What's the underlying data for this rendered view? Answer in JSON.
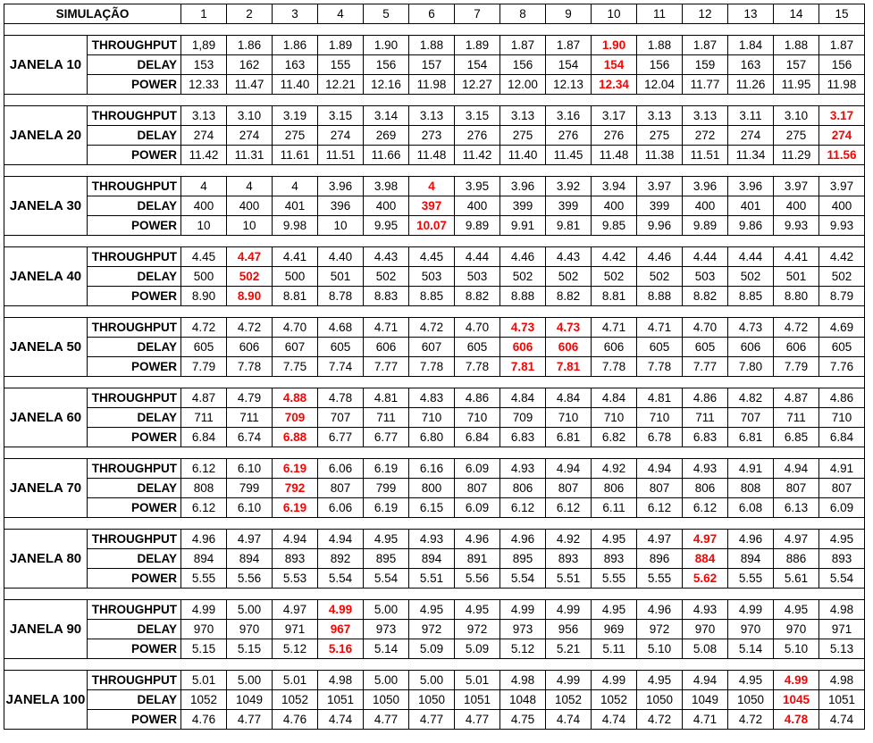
{
  "header": {
    "label": "SIMULAÇÃO",
    "columns": [
      "1",
      "2",
      "3",
      "4",
      "5",
      "6",
      "7",
      "8",
      "9",
      "10",
      "11",
      "12",
      "13",
      "14",
      "15"
    ]
  },
  "metrics": [
    "THROUGHPUT",
    "DELAY",
    "POWER"
  ],
  "colors": {
    "highlight": "#ff0000",
    "border": "#000000"
  },
  "groups": [
    {
      "label": "JANELA 10",
      "rows": [
        {
          "values": [
            "1,89",
            "1.86",
            "1.86",
            "1.89",
            "1.90",
            "1.88",
            "1.89",
            "1.87",
            "1.87",
            "1.90",
            "1.88",
            "1.87",
            "1.84",
            "1.88",
            "1.87"
          ],
          "highlight": [
            9
          ]
        },
        {
          "values": [
            "153",
            "162",
            "163",
            "155",
            "156",
            "157",
            "154",
            "156",
            "154",
            "154",
            "156",
            "159",
            "163",
            "157",
            "156"
          ],
          "highlight": [
            9
          ]
        },
        {
          "values": [
            "12.33",
            "11.47",
            "11.40",
            "12.21",
            "12.16",
            "11.98",
            "12.27",
            "12.00",
            "12.13",
            "12.34",
            "12.04",
            "11.77",
            "11.26",
            "11.95",
            "11.98"
          ],
          "highlight": [
            9
          ]
        }
      ]
    },
    {
      "label": "JANELA 20",
      "rows": [
        {
          "values": [
            "3.13",
            "3.10",
            "3.19",
            "3.15",
            "3.14",
            "3.13",
            "3.15",
            "3.13",
            "3.16",
            "3.17",
            "3.13",
            "3.13",
            "3.11",
            "3.10",
            "3.17"
          ],
          "highlight": [
            14
          ]
        },
        {
          "values": [
            "274",
            "274",
            "275",
            "274",
            "269",
            "273",
            "276",
            "275",
            "276",
            "276",
            "275",
            "272",
            "274",
            "275",
            "274"
          ],
          "highlight": [
            14
          ]
        },
        {
          "values": [
            "11.42",
            "11.31",
            "11.61",
            "11.51",
            "11.66",
            "11.48",
            "11.42",
            "11.40",
            "11.45",
            "11.48",
            "11.38",
            "11.51",
            "11.34",
            "11.29",
            "11.56"
          ],
          "highlight": [
            14
          ]
        }
      ]
    },
    {
      "label": "JANELA 30",
      "rows": [
        {
          "values": [
            "4",
            "4",
            "4",
            "3.96",
            "3.98",
            "4",
            "3.95",
            "3.96",
            "3.92",
            "3.94",
            "3.97",
            "3.96",
            "3.96",
            "3.97",
            "3.97"
          ],
          "highlight": [
            5
          ]
        },
        {
          "values": [
            "400",
            "400",
            "401",
            "396",
            "400",
            "397",
            "400",
            "399",
            "399",
            "400",
            "399",
            "400",
            "401",
            "400",
            "400"
          ],
          "highlight": [
            5
          ]
        },
        {
          "values": [
            "10",
            "10",
            "9.98",
            "10",
            "9.95",
            "10.07",
            "9.89",
            "9.91",
            "9.81",
            "9.85",
            "9.96",
            "9.89",
            "9.86",
            "9.93",
            "9.93"
          ],
          "highlight": [
            5
          ]
        }
      ]
    },
    {
      "label": "JANELA 40",
      "rows": [
        {
          "values": [
            "4.45",
            "4.47",
            "4.41",
            "4.40",
            "4.43",
            "4.45",
            "4.44",
            "4.46",
            "4.43",
            "4.42",
            "4.46",
            "4.44",
            "4.44",
            "4.41",
            "4.42"
          ],
          "highlight": [
            1
          ]
        },
        {
          "values": [
            "500",
            "502",
            "500",
            "501",
            "502",
            "503",
            "503",
            "502",
            "502",
            "502",
            "502",
            "503",
            "502",
            "501",
            "502"
          ],
          "highlight": [
            1
          ]
        },
        {
          "values": [
            "8.90",
            "8.90",
            "8.81",
            "8.78",
            "8.83",
            "8.85",
            "8.82",
            "8.88",
            "8.82",
            "8.81",
            "8.88",
            "8.82",
            "8.85",
            "8.80",
            "8.79"
          ],
          "highlight": [
            1
          ]
        }
      ]
    },
    {
      "label": "JANELA 50",
      "rows": [
        {
          "values": [
            "4.72",
            "4.72",
            "4.70",
            "4.68",
            "4.71",
            "4.72",
            "4.70",
            "4.73",
            "4.73",
            "4.71",
            "4.71",
            "4.70",
            "4.73",
            "4.72",
            "4.69"
          ],
          "highlight": [
            7,
            8
          ]
        },
        {
          "values": [
            "605",
            "606",
            "607",
            "605",
            "606",
            "607",
            "605",
            "606",
            "606",
            "606",
            "605",
            "605",
            "606",
            "606",
            "605"
          ],
          "highlight": [
            7,
            8
          ]
        },
        {
          "values": [
            "7.79",
            "7.78",
            "7.75",
            "7.74",
            "7.77",
            "7.78",
            "7.78",
            "7.81",
            "7.81",
            "7.78",
            "7.78",
            "7.77",
            "7.80",
            "7.79",
            "7.76"
          ],
          "highlight": [
            7,
            8
          ]
        }
      ]
    },
    {
      "label": "JANELA 60",
      "rows": [
        {
          "values": [
            "4.87",
            "4.79",
            "4.88",
            "4.78",
            "4.81",
            "4.83",
            "4.86",
            "4.84",
            "4.84",
            "4.84",
            "4.81",
            "4.86",
            "4.82",
            "4.87",
            "4.86"
          ],
          "highlight": [
            2
          ]
        },
        {
          "values": [
            "711",
            "711",
            "709",
            "707",
            "711",
            "710",
            "710",
            "709",
            "710",
            "710",
            "710",
            "711",
            "707",
            "711",
            "710"
          ],
          "highlight": [
            2
          ]
        },
        {
          "values": [
            "6.84",
            "6.74",
            "6.88",
            "6.77",
            "6.77",
            "6.80",
            "6.84",
            "6.83",
            "6.81",
            "6.82",
            "6.78",
            "6.83",
            "6.81",
            "6.85",
            "6.84"
          ],
          "highlight": [
            2
          ]
        }
      ]
    },
    {
      "label": "JANELA 70",
      "rows": [
        {
          "values": [
            "6.12",
            "6.10",
            "6.19",
            "6.06",
            "6.19",
            "6.16",
            "6.09",
            "4.93",
            "4.94",
            "4.92",
            "4.94",
            "4.93",
            "4.91",
            "4.94",
            "4.91"
          ],
          "highlight": [
            2
          ]
        },
        {
          "values": [
            "808",
            "799",
            "792",
            "807",
            "799",
            "800",
            "807",
            "806",
            "807",
            "806",
            "807",
            "806",
            "808",
            "807",
            "807"
          ],
          "highlight": [
            2
          ]
        },
        {
          "values": [
            "6.12",
            "6.10",
            "6.19",
            "6.06",
            "6.19",
            "6.15",
            "6.09",
            "6.12",
            "6.12",
            "6.11",
            "6.12",
            "6.12",
            "6.08",
            "6.13",
            "6.09"
          ],
          "highlight": [
            2
          ]
        }
      ]
    },
    {
      "label": "JANELA 80",
      "rows": [
        {
          "values": [
            "4.96",
            "4.97",
            "4.94",
            "4.94",
            "4.95",
            "4.93",
            "4.96",
            "4.96",
            "4.92",
            "4.95",
            "4.97",
            "4.97",
            "4.96",
            "4.97",
            "4.95"
          ],
          "highlight": [
            11
          ]
        },
        {
          "values": [
            "894",
            "894",
            "893",
            "892",
            "895",
            "894",
            "891",
            "895",
            "893",
            "893",
            "896",
            "884",
            "894",
            "886",
            "893"
          ],
          "highlight": [
            11
          ]
        },
        {
          "values": [
            "5.55",
            "5.56",
            "5.53",
            "5.54",
            "5.54",
            "5.51",
            "5.56",
            "5.54",
            "5.51",
            "5.55",
            "5.55",
            "5.62",
            "5.55",
            "5.61",
            "5.54"
          ],
          "highlight": [
            11
          ]
        }
      ]
    },
    {
      "label": "JANELA 90",
      "rows": [
        {
          "values": [
            "4.99",
            "5.00",
            "4.97",
            "4.99",
            "5.00",
            "4.95",
            "4.95",
            "4.99",
            "4.99",
            "4.95",
            "4.96",
            "4.93",
            "4.99",
            "4.95",
            "4.98"
          ],
          "highlight": [
            3
          ]
        },
        {
          "values": [
            "970",
            "970",
            "971",
            "967",
            "973",
            "972",
            "972",
            "973",
            "956",
            "969",
            "972",
            "970",
            "970",
            "970",
            "971"
          ],
          "highlight": [
            3
          ]
        },
        {
          "values": [
            "5.15",
            "5.15",
            "5.12",
            "5.16",
            "5.14",
            "5.09",
            "5.09",
            "5.12",
            "5.21",
            "5.11",
            "5.10",
            "5.08",
            "5.14",
            "5.10",
            "5.13"
          ],
          "highlight": [
            3
          ]
        }
      ]
    },
    {
      "label": "JANELA 100",
      "rows": [
        {
          "values": [
            "5.01",
            "5.00",
            "5.01",
            "4.98",
            "5.00",
            "5.00",
            "5.01",
            "4.98",
            "4.99",
            "4.99",
            "4.95",
            "4.94",
            "4.95",
            "4.99",
            "4.98"
          ],
          "highlight": [
            13
          ]
        },
        {
          "values": [
            "1052",
            "1049",
            "1052",
            "1051",
            "1050",
            "1050",
            "1051",
            "1048",
            "1052",
            "1052",
            "1050",
            "1049",
            "1050",
            "1045",
            "1051"
          ],
          "highlight": [
            13
          ]
        },
        {
          "values": [
            "4.76",
            "4.77",
            "4.76",
            "4.74",
            "4.77",
            "4.77",
            "4.77",
            "4.75",
            "4.74",
            "4.74",
            "4.72",
            "4.71",
            "4.72",
            "4.78",
            "4.74"
          ],
          "highlight": [
            13
          ]
        }
      ]
    }
  ]
}
